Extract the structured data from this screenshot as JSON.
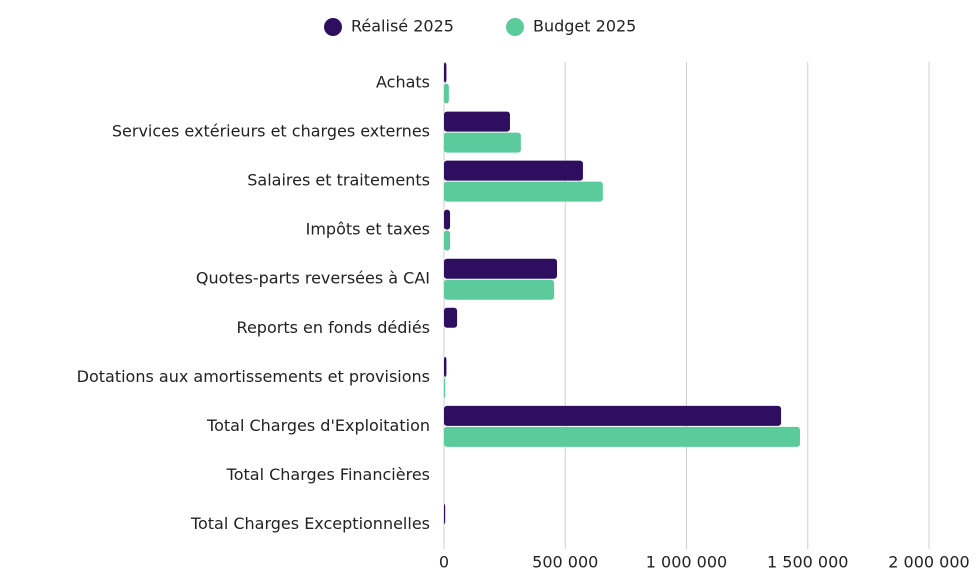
{
  "chart_data": {
    "type": "bar",
    "orientation": "horizontal",
    "categories": [
      "Achats",
      "Services extérieurs et charges externes",
      "Salaires et traitements",
      "Impôts et taxes",
      "Quotes-parts reversées à CAI",
      "Reports en fonds dédiés",
      "Dotations aux amortissements et provisions",
      "Total Charges d'Exploitation",
      "Total Charges Financières",
      "Total Charges Exceptionnelles"
    ],
    "series": [
      {
        "name": "Réalisé 2025",
        "color": "#2e0e5e",
        "values": [
          10000,
          272000,
          573000,
          25000,
          466000,
          54000,
          10000,
          1390000,
          0,
          5000
        ]
      },
      {
        "name": "Budget 2025",
        "color": "#5ccb9b",
        "values": [
          20000,
          317000,
          655000,
          25000,
          454000,
          0,
          5000,
          1468000,
          0,
          0
        ]
      }
    ],
    "xlim": [
      0,
      2000000
    ],
    "xticks": [
      0,
      {
        "value": 500000,
        "label": "500 000"
      },
      {
        "value": 1000000,
        "label": "1 000 000"
      },
      {
        "value": 1500000,
        "label": "1 500 000"
      },
      {
        "value": 2000000,
        "label": "2 000 000"
      }
    ],
    "grid": true,
    "legend": "top"
  }
}
